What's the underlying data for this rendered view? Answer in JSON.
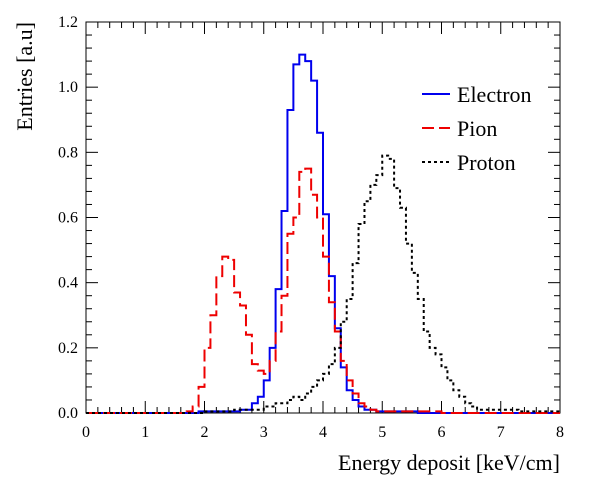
{
  "chart_data": {
    "type": "line",
    "style": "step-histogram",
    "title": "",
    "xlabel": "Energy deposit [keV/cm]",
    "ylabel": "Entries [a.u]",
    "xlim": [
      0,
      8
    ],
    "ylim": [
      0,
      1.2
    ],
    "xticks": [
      "0",
      "1",
      "2",
      "3",
      "4",
      "5",
      "6",
      "7",
      "8"
    ],
    "yticks": [
      "0.0",
      "0.2",
      "0.4",
      "0.6",
      "0.8",
      "1.0",
      "1.2"
    ],
    "grid": false,
    "legend_position": "top-right",
    "bin_width": 0.1,
    "series": [
      {
        "name": "Electron",
        "color": "#0000ee",
        "line_style": "solid",
        "x": [
          0.0,
          0.1,
          0.2,
          0.3,
          0.4,
          0.5,
          0.6,
          0.7,
          0.8,
          0.9,
          1.0,
          1.1,
          1.2,
          1.3,
          1.4,
          1.5,
          1.6,
          1.7,
          1.8,
          1.9,
          2.0,
          2.1,
          2.2,
          2.3,
          2.4,
          2.5,
          2.6,
          2.7,
          2.8,
          2.9,
          3.0,
          3.1,
          3.2,
          3.3,
          3.4,
          3.5,
          3.6,
          3.7,
          3.8,
          3.9,
          4.0,
          4.1,
          4.2,
          4.3,
          4.4,
          4.5,
          4.6,
          4.7,
          4.8,
          4.9,
          5.0,
          5.1,
          5.2,
          5.3,
          5.4,
          5.5,
          5.6,
          5.7,
          5.8,
          5.9,
          6.0,
          6.1,
          6.2,
          6.3,
          6.4,
          6.5,
          6.6,
          6.7,
          6.8,
          6.9,
          7.0,
          7.1,
          7.2,
          7.3,
          7.4,
          7.5,
          7.6,
          7.7,
          7.8,
          7.9
        ],
        "values": [
          0,
          0,
          0,
          0,
          0,
          0,
          0,
          0,
          0,
          0,
          0,
          0,
          0,
          0,
          0,
          0,
          0,
          0,
          0,
          0.005,
          0.005,
          0.005,
          0.005,
          0.005,
          0.005,
          0.005,
          0.01,
          0.01,
          0.03,
          0.05,
          0.1,
          0.2,
          0.38,
          0.62,
          0.93,
          1.07,
          1.1,
          1.08,
          1.02,
          0.86,
          0.61,
          0.42,
          0.26,
          0.14,
          0.07,
          0.04,
          0.02,
          0.01,
          0.01,
          0.005,
          0.005,
          0.005,
          0.005,
          0.005,
          0.005,
          0.005,
          0,
          0,
          0,
          0,
          0,
          0,
          0,
          0,
          0,
          0,
          0,
          0,
          0,
          0,
          0,
          0,
          0,
          0,
          0,
          0,
          0,
          0,
          0,
          0
        ]
      },
      {
        "name": "Pion",
        "color": "#ee0000",
        "line_style": "dashed",
        "x": [
          0.0,
          0.1,
          0.2,
          0.3,
          0.4,
          0.5,
          0.6,
          0.7,
          0.8,
          0.9,
          1.0,
          1.1,
          1.2,
          1.3,
          1.4,
          1.5,
          1.6,
          1.7,
          1.8,
          1.9,
          2.0,
          2.1,
          2.2,
          2.3,
          2.4,
          2.5,
          2.6,
          2.7,
          2.8,
          2.9,
          3.0,
          3.1,
          3.2,
          3.3,
          3.4,
          3.5,
          3.6,
          3.7,
          3.8,
          3.9,
          4.0,
          4.1,
          4.2,
          4.3,
          4.4,
          4.5,
          4.6,
          4.7,
          4.8,
          4.9,
          5.0,
          5.1,
          5.2,
          5.3,
          5.4,
          5.5,
          5.6,
          5.7,
          5.8,
          5.9,
          6.0,
          6.1,
          6.2,
          6.3,
          6.4,
          6.5,
          6.6,
          6.7,
          6.8,
          6.9,
          7.0,
          7.1,
          7.2,
          7.3,
          7.4,
          7.5,
          7.6,
          7.7,
          7.8,
          7.9
        ],
        "values": [
          0,
          0,
          0,
          0,
          0,
          0,
          0,
          0,
          0,
          0,
          0,
          0,
          0,
          0,
          0,
          0,
          0,
          0.005,
          0.02,
          0.08,
          0.2,
          0.3,
          0.42,
          0.48,
          0.47,
          0.37,
          0.33,
          0.24,
          0.15,
          0.13,
          0.12,
          0.16,
          0.25,
          0.36,
          0.55,
          0.6,
          0.74,
          0.75,
          0.67,
          0.6,
          0.48,
          0.34,
          0.25,
          0.16,
          0.1,
          0.06,
          0.03,
          0.02,
          0.01,
          0.005,
          0.005,
          0.005,
          0.005,
          0.005,
          0.005,
          0.005,
          0.005,
          0.005,
          0.005,
          0.005,
          0,
          0,
          0,
          0,
          0,
          0,
          0,
          0,
          0,
          0,
          0,
          0,
          0,
          0,
          0,
          0,
          0,
          0,
          0,
          0
        ]
      },
      {
        "name": "Proton",
        "color": "#000000",
        "line_style": "dotted",
        "x": [
          0.0,
          0.1,
          0.2,
          0.3,
          0.4,
          0.5,
          0.6,
          0.7,
          0.8,
          0.9,
          1.0,
          1.1,
          1.2,
          1.3,
          1.4,
          1.5,
          1.6,
          1.7,
          1.8,
          1.9,
          2.0,
          2.1,
          2.2,
          2.3,
          2.4,
          2.5,
          2.6,
          2.7,
          2.8,
          2.9,
          3.0,
          3.1,
          3.2,
          3.3,
          3.4,
          3.5,
          3.6,
          3.7,
          3.8,
          3.9,
          4.0,
          4.1,
          4.2,
          4.3,
          4.4,
          4.5,
          4.6,
          4.7,
          4.8,
          4.9,
          5.0,
          5.1,
          5.2,
          5.3,
          5.4,
          5.5,
          5.6,
          5.7,
          5.8,
          5.9,
          6.0,
          6.1,
          6.2,
          6.3,
          6.4,
          6.5,
          6.6,
          6.7,
          6.8,
          6.9,
          7.0,
          7.1,
          7.2,
          7.3,
          7.4,
          7.5,
          7.6,
          7.7,
          7.8,
          7.9
        ],
        "values": [
          0,
          0,
          0,
          0,
          0,
          0,
          0,
          0,
          0,
          0,
          0,
          0,
          0,
          0,
          0,
          0,
          0,
          0,
          0,
          0,
          0.005,
          0.005,
          0.005,
          0.005,
          0.005,
          0.01,
          0.01,
          0.01,
          0.01,
          0.01,
          0.02,
          0.02,
          0.03,
          0.03,
          0.04,
          0.05,
          0.04,
          0.06,
          0.08,
          0.1,
          0.12,
          0.15,
          0.2,
          0.28,
          0.35,
          0.46,
          0.58,
          0.65,
          0.7,
          0.73,
          0.79,
          0.78,
          0.69,
          0.63,
          0.52,
          0.43,
          0.35,
          0.25,
          0.2,
          0.18,
          0.14,
          0.1,
          0.07,
          0.05,
          0.03,
          0.02,
          0.01,
          0.01,
          0.01,
          0.01,
          0.01,
          0.01,
          0.01,
          0.005,
          0.005,
          0.005,
          0.005,
          0.005,
          0.005,
          0.005
        ]
      }
    ]
  }
}
